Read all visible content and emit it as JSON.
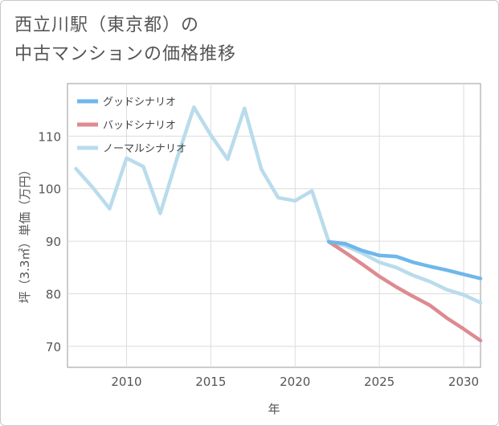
{
  "title_line1": "西立川駅（東京都）の",
  "title_line2": "中古マンションの価格推移",
  "chart_data": {
    "type": "line",
    "xlabel": "年",
    "ylabel": "坪（3.3㎡）単価（万円）",
    "xlim": [
      2006.5,
      2031
    ],
    "ylim": [
      66,
      120
    ],
    "xticks": [
      2010,
      2015,
      2020,
      2025,
      2030
    ],
    "yticks": [
      70,
      80,
      90,
      100,
      110
    ],
    "legend_position": "top-left",
    "series": [
      {
        "name": "グッドシナリオ",
        "color": "#6fb7ea",
        "x": [
          2022,
          2023,
          2024,
          2025,
          2026,
          2027,
          2028,
          2029,
          2030,
          2031
        ],
        "y": [
          89.9,
          89.5,
          88.2,
          87.3,
          87.1,
          86.0,
          85.2,
          84.5,
          83.7,
          82.9
        ]
      },
      {
        "name": "バッドシナリオ",
        "color": "#dd8a91",
        "x": [
          2022,
          2023,
          2024,
          2025,
          2026,
          2027,
          2028,
          2029,
          2030,
          2031
        ],
        "y": [
          89.9,
          87.8,
          85.6,
          83.3,
          81.3,
          79.5,
          77.8,
          75.4,
          73.3,
          71.1
        ]
      },
      {
        "name": "ノーマルシナリオ",
        "color": "#b9dcec",
        "x": [
          2007,
          2008,
          2009,
          2010,
          2011,
          2012,
          2013,
          2014,
          2015,
          2016,
          2017,
          2018,
          2019,
          2020,
          2021,
          2022,
          2023,
          2024,
          2025,
          2026,
          2027,
          2028,
          2029,
          2030,
          2031
        ],
        "y": [
          103.8,
          100.2,
          96.2,
          105.8,
          104.2,
          95.3,
          105.8,
          115.5,
          110.2,
          105.6,
          115.3,
          103.7,
          98.3,
          97.7,
          99.6,
          89.9,
          89.1,
          87.7,
          86.0,
          85.0,
          83.5,
          82.3,
          80.8,
          79.8,
          78.3
        ]
      }
    ]
  }
}
